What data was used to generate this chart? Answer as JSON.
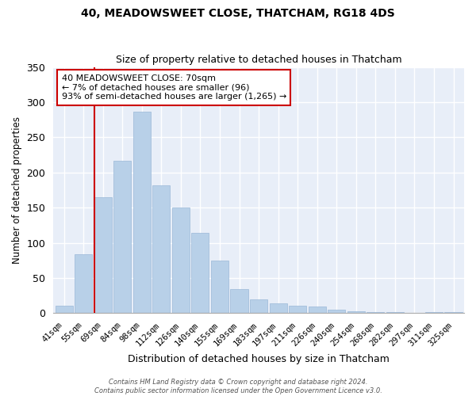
{
  "title": "40, MEADOWSWEET CLOSE, THATCHAM, RG18 4DS",
  "subtitle": "Size of property relative to detached houses in Thatcham",
  "xlabel": "Distribution of detached houses by size in Thatcham",
  "ylabel": "Number of detached properties",
  "bar_labels": [
    "41sqm",
    "55sqm",
    "69sqm",
    "84sqm",
    "98sqm",
    "112sqm",
    "126sqm",
    "140sqm",
    "155sqm",
    "169sqm",
    "183sqm",
    "197sqm",
    "211sqm",
    "226sqm",
    "240sqm",
    "254sqm",
    "268sqm",
    "282sqm",
    "297sqm",
    "311sqm",
    "325sqm"
  ],
  "bar_values": [
    11,
    84,
    165,
    217,
    286,
    182,
    150,
    114,
    75,
    34,
    19,
    14,
    11,
    9,
    5,
    3,
    2,
    1,
    0,
    1,
    1
  ],
  "bar_color": "#b8d0e8",
  "bar_edge_color": "#9ab8d8",
  "vline_color": "#cc0000",
  "ylim": [
    0,
    350
  ],
  "yticks": [
    0,
    50,
    100,
    150,
    200,
    250,
    300,
    350
  ],
  "annotation_title": "40 MEADOWSWEET CLOSE: 70sqm",
  "annotation_line1": "← 7% of detached houses are smaller (96)",
  "annotation_line2": "93% of semi-detached houses are larger (1,265) →",
  "annotation_box_color": "#ffffff",
  "annotation_box_edge": "#cc0000",
  "footer_line1": "Contains HM Land Registry data © Crown copyright and database right 2024.",
  "footer_line2": "Contains public sector information licensed under the Open Government Licence v3.0.",
  "background_color": "#ffffff",
  "plot_bg_color": "#e8eef8",
  "grid_color": "#ffffff",
  "title_fontsize": 10,
  "subtitle_fontsize": 9
}
